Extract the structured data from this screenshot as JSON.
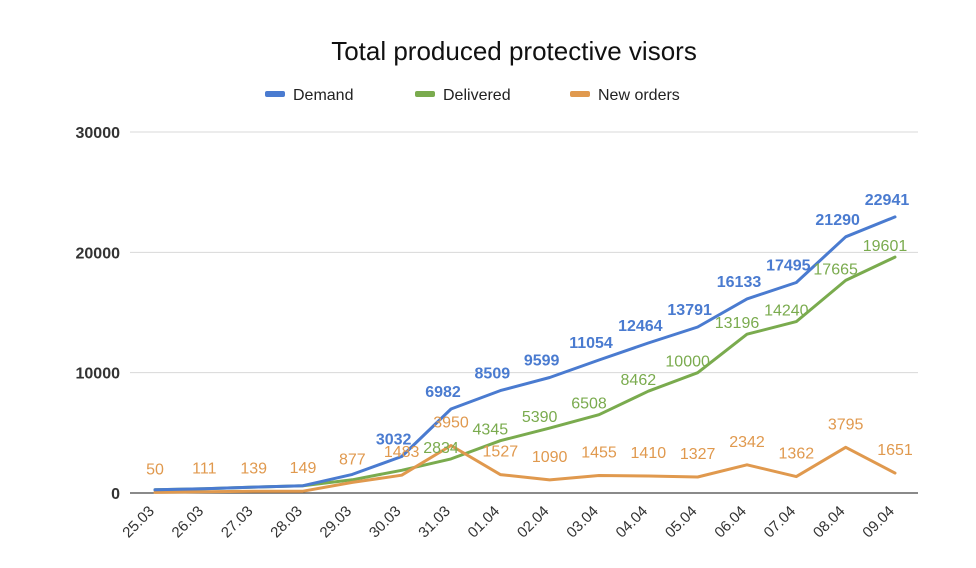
{
  "chart_data": {
    "type": "line",
    "title": "Total produced protective visors",
    "categories": [
      "25.03",
      "26.03",
      "27.03",
      "28.03",
      "29.03",
      "30.03",
      "31.03",
      "01.04",
      "02.04",
      "03.04",
      "04.04",
      "05.04",
      "06.04",
      "07.04",
      "08.04",
      "09.04"
    ],
    "ylim": [
      0,
      30000
    ],
    "yticks": [
      0,
      10000,
      20000,
      30000
    ],
    "ytick_labels": [
      "0",
      "10000",
      "20000",
      "30000"
    ],
    "grid": true,
    "legend_position": "top",
    "series": [
      {
        "name": "Demand",
        "color": "#4a7bd0",
        "values": [
          263,
          351,
          490,
          610,
          1546,
          3032,
          6982,
          8509,
          9599,
          11054,
          12464,
          13791,
          16133,
          17495,
          21290,
          22941
        ],
        "labels": [
          null,
          null,
          null,
          null,
          null,
          "3032",
          "6982",
          "8509",
          "9599",
          "11054",
          "12464",
          "13791",
          "16133",
          "17495",
          "21290",
          "22941"
        ]
      },
      {
        "name": "Delivered",
        "color": "#7aab4e",
        "values": [
          263,
          351,
          490,
          610,
          1100,
          1884,
          2834,
          4345,
          5390,
          6508,
          8462,
          10000,
          13196,
          14240,
          17665,
          19601
        ],
        "labels": [
          null,
          null,
          null,
          null,
          null,
          null,
          "2834",
          "4345",
          "5390",
          "6508",
          "8462",
          "10000",
          "13196",
          "14240",
          "17665",
          "19601"
        ]
      },
      {
        "name": "New orders",
        "color": "#e0994e",
        "values": [
          50,
          111,
          139,
          149,
          877,
          1483,
          3950,
          1527,
          1090,
          1455,
          1410,
          1327,
          2342,
          1362,
          3795,
          1651
        ],
        "labels": [
          "50",
          "111",
          "139",
          "149",
          "877",
          "1483",
          "3950",
          "1527",
          "1090",
          "1455",
          "1410",
          "1327",
          "2342",
          "1362",
          "3795",
          "1651"
        ]
      }
    ]
  }
}
